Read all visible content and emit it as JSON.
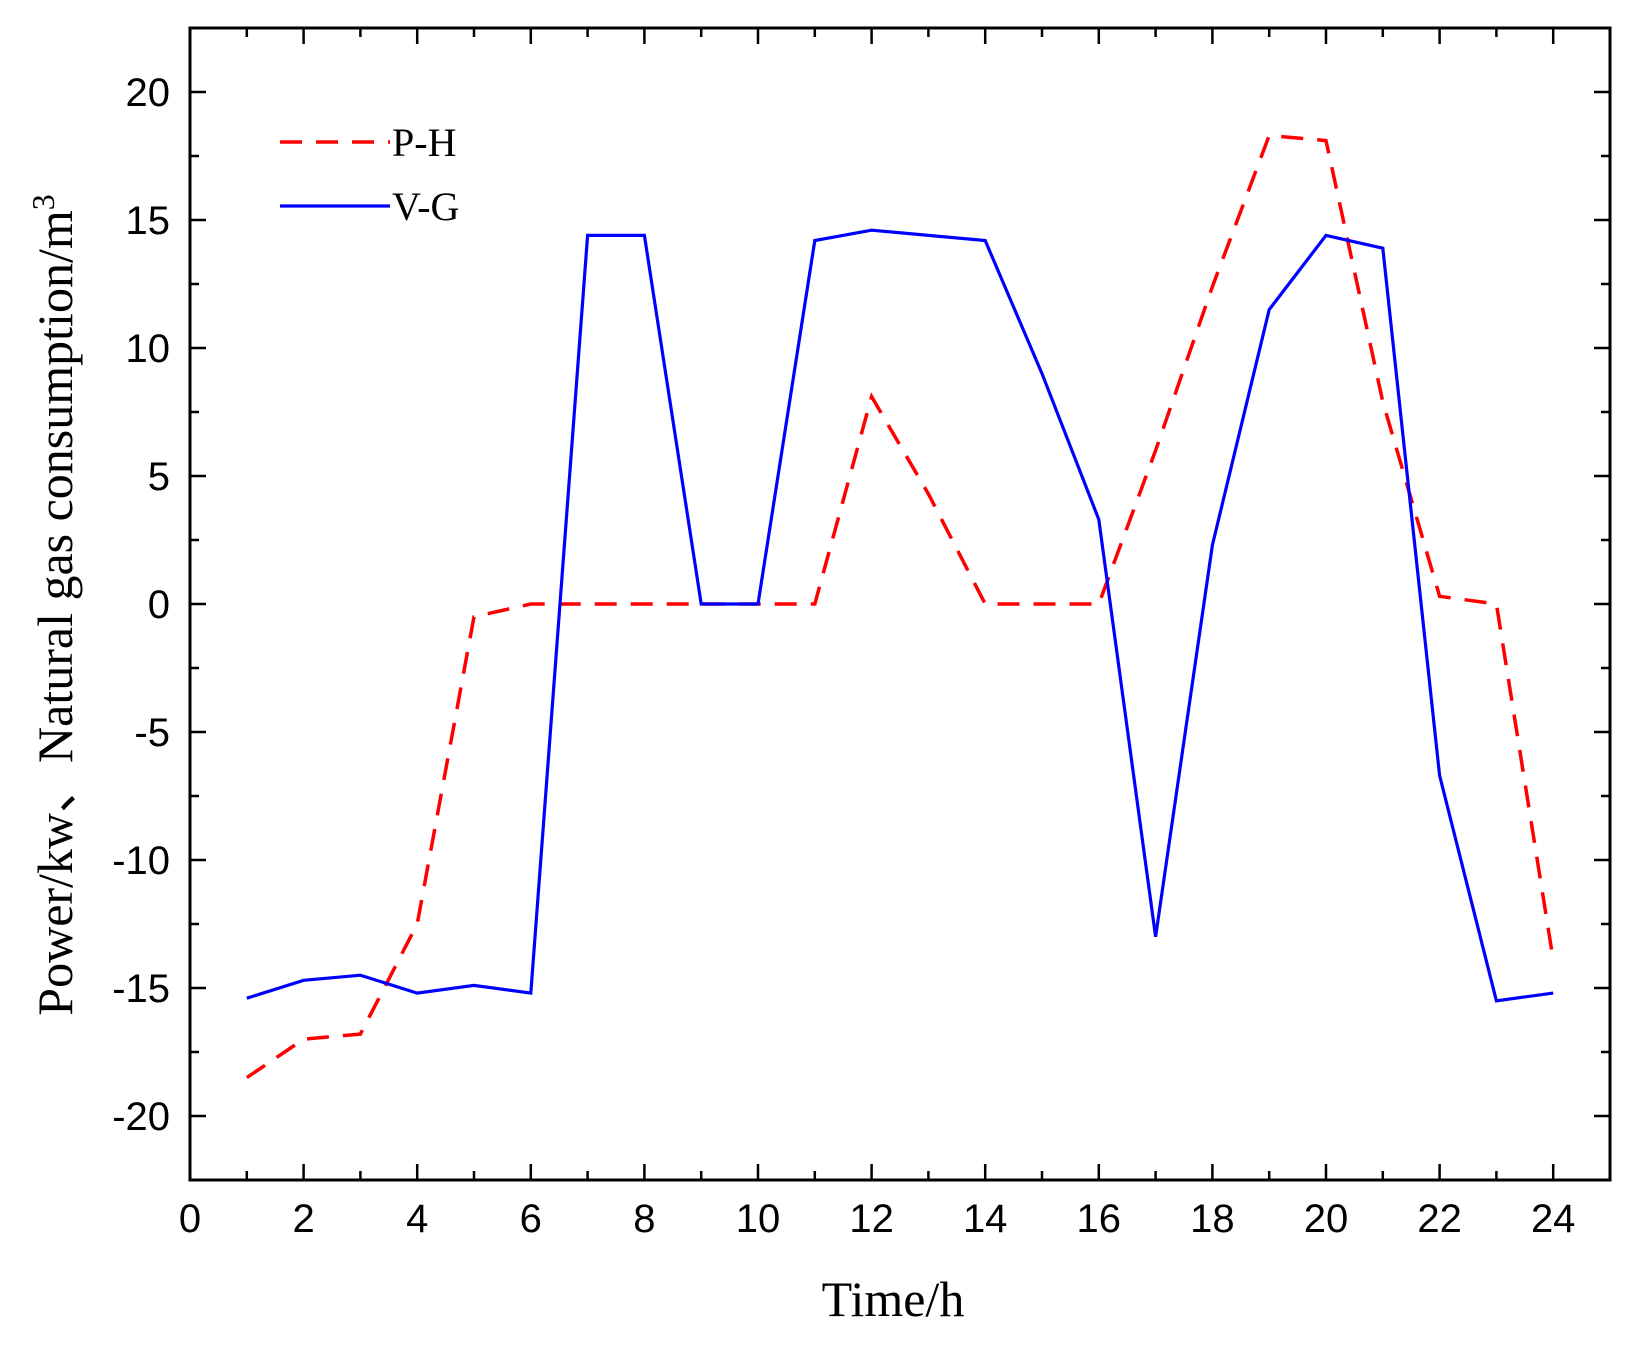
{
  "chart_data": {
    "type": "line",
    "xlabel": "Time/h",
    "ylabel": "Power/kw、Natural gas consumption/m",
    "ylabel_sup": "3",
    "xlim": [
      0,
      25
    ],
    "ylim": [
      -22.5,
      22.5
    ],
    "x_ticks": [
      0,
      2,
      4,
      6,
      8,
      10,
      12,
      14,
      16,
      18,
      20,
      22,
      24
    ],
    "y_ticks": [
      -20,
      -15,
      -10,
      -5,
      0,
      5,
      10,
      15,
      20
    ],
    "grid": false,
    "legend_position": "top-left",
    "x": [
      1,
      2,
      3,
      4,
      5,
      6,
      7,
      8,
      9,
      10,
      11,
      12,
      13,
      14,
      15,
      16,
      17,
      18,
      19,
      20,
      21,
      22,
      23,
      24
    ],
    "series": [
      {
        "name": "P-H",
        "color": "#ff0000",
        "dash": "dashed",
        "values": [
          -18.5,
          -17,
          -16.8,
          -12.5,
          -0.5,
          0,
          0,
          0,
          0,
          0,
          0,
          8.1,
          4.3,
          0,
          0,
          0,
          6,
          12.4,
          18.3,
          18.1,
          7.9,
          0.3,
          0,
          -13.9
        ]
      },
      {
        "name": "V-G",
        "color": "#0000ff",
        "dash": "solid",
        "values": [
          -15.4,
          -14.7,
          -14.5,
          -15.2,
          -14.9,
          -15.2,
          14.4,
          14.4,
          0,
          0,
          14.2,
          14.6,
          14.4,
          14.2,
          9,
          3.3,
          -13,
          2.3,
          11.5,
          14.4,
          13.9,
          -6.7,
          -15.5,
          -15.2
        ]
      }
    ]
  }
}
